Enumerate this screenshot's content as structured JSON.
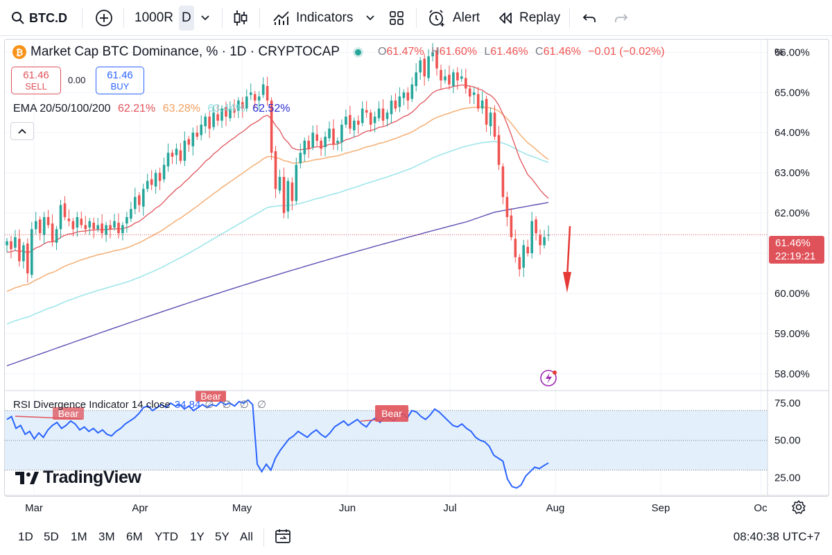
{
  "toolbar": {
    "symbol": "BTC.D",
    "timeframe_count": "1000R",
    "interval": "D",
    "indicators_label": "Indicators",
    "alert_label": "Alert",
    "replay_label": "Replay"
  },
  "legend": {
    "title": "Market Cap BTC Dominance, % · 1D · CRYPTOCAP",
    "ohlc": {
      "o_key": "O",
      "o": "61.47%",
      "h_key": "H",
      "h": "61.60%",
      "l_key": "L",
      "l": "61.46%",
      "c_key": "C",
      "c": "61.46%",
      "change": "−0.01 (−0.02%)"
    },
    "sell_value": "61.46",
    "sell_label": "SELL",
    "spread": "0.00",
    "buy_value": "61.46",
    "buy_label": "BUY",
    "ema_label": "EMA 20/50/100/200",
    "ema_values": [
      "62.21%",
      "63.28%",
      "63.44%",
      "62.52%"
    ],
    "rsi_label": "RSI Divergence Indicator 14 close",
    "rsi_value": "34.84",
    "rsi_extra": "∅ ∅ ∅ ∅",
    "brand": "TradingView"
  },
  "price_tag": {
    "price": "61.46%",
    "countdown": "22:19:21"
  },
  "axis_unit": "%",
  "colors": {
    "up": "#26a69a",
    "down": "#ef5350",
    "ema20": "#e0525a",
    "ema50": "#f5b27a",
    "ema100": "#9ee6ea",
    "ema200": "#5b4fb3",
    "rsi": "#2962ff",
    "rsi_band": "#e3f0fb",
    "arrow": "#e53935",
    "bear_label": "#e0525a"
  },
  "chart_data": {
    "type": "candlestick",
    "x_labels": [
      "Mar",
      "Apr",
      "May",
      "Jun",
      "Jul",
      "Aug",
      "Sep",
      "Oc"
    ],
    "y_ticks": [
      "66.00%",
      "65.00%",
      "64.00%",
      "63.00%",
      "62.00%",
      "61.00%",
      "60.00%",
      "59.00%",
      "58.00%"
    ],
    "ylim": [
      57.6,
      66.3
    ],
    "current_price": 61.46,
    "close_series": [
      61.3,
      61.1,
      61.4,
      60.8,
      61.2,
      60.5,
      61.6,
      61.8,
      61.5,
      61.9,
      61.7,
      61.3,
      61.6,
      62.2,
      61.9,
      61.8,
      61.6,
      61.9,
      61.7,
      61.6,
      61.8,
      61.6,
      61.7,
      61.5,
      61.7,
      61.6,
      61.8,
      61.5,
      61.7,
      61.9,
      62.1,
      62.4,
      62.2,
      62.6,
      62.8,
      62.7,
      63.0,
      62.8,
      63.2,
      63.5,
      63.4,
      63.6,
      63.3,
      63.8,
      63.7,
      64.0,
      63.9,
      64.2,
      64.4,
      64.1,
      64.5,
      64.3,
      64.6,
      64.4,
      64.6,
      64.5,
      64.8,
      64.6,
      64.9,
      65.0,
      64.8,
      64.9,
      65.2,
      64.8,
      63.5,
      62.6,
      62.9,
      62.0,
      62.8,
      62.3,
      63.2,
      63.5,
      63.8,
      63.6,
      64.0,
      63.8,
      63.6,
      63.9,
      64.1,
      63.7,
      63.8,
      64.2,
      64.4,
      64.1,
      64.3,
      64.2,
      64.6,
      64.5,
      64.2,
      64.4,
      64.6,
      64.3,
      64.5,
      64.8,
      64.6,
      64.9,
      65.0,
      64.8,
      65.2,
      65.5,
      65.8,
      65.4,
      65.9,
      66.0,
      65.6,
      65.3,
      65.4,
      65.2,
      65.5,
      65.3,
      65.4,
      65.1,
      64.9,
      65.0,
      64.6,
      64.8,
      64.2,
      64.5,
      63.9,
      63.2,
      62.4,
      61.9,
      61.4,
      60.9,
      60.6,
      61.2,
      61.0,
      61.8,
      61.5,
      61.2,
      61.4,
      61.46
    ],
    "ema200_endpoints": [
      58.2,
      62.52
    ],
    "rsi": {
      "ylim": [
        14,
        82
      ],
      "levels": [
        75.0,
        50.0,
        25.0
      ],
      "band": [
        30,
        70
      ],
      "values": [
        64,
        66,
        58,
        60,
        54,
        56,
        51,
        55,
        52,
        57,
        60,
        62,
        58,
        60,
        63,
        61,
        57,
        59,
        56,
        58,
        55,
        57,
        54,
        53,
        56,
        58,
        61,
        63,
        65,
        68,
        72,
        73,
        70,
        72,
        74,
        72,
        75,
        73,
        74,
        71,
        73,
        70,
        72,
        74,
        72,
        74,
        73,
        76,
        74,
        75,
        73,
        76,
        75,
        77,
        74,
        34,
        29,
        34,
        30,
        38,
        43,
        47,
        51,
        53,
        56,
        54,
        52,
        55,
        57,
        54,
        52,
        55,
        59,
        61,
        63,
        60,
        62,
        64,
        61,
        59,
        63,
        65,
        62,
        66,
        65,
        63,
        67,
        68,
        65,
        70,
        69,
        66,
        64,
        67,
        71,
        69,
        66,
        63,
        60,
        59,
        61,
        58,
        56,
        52,
        50,
        49,
        46,
        40,
        38,
        36,
        24,
        19,
        18,
        20,
        26,
        29,
        32,
        31,
        33,
        34.84
      ],
      "bear_labels": [
        "Bear",
        "Bear",
        "Bear"
      ]
    }
  }
}
